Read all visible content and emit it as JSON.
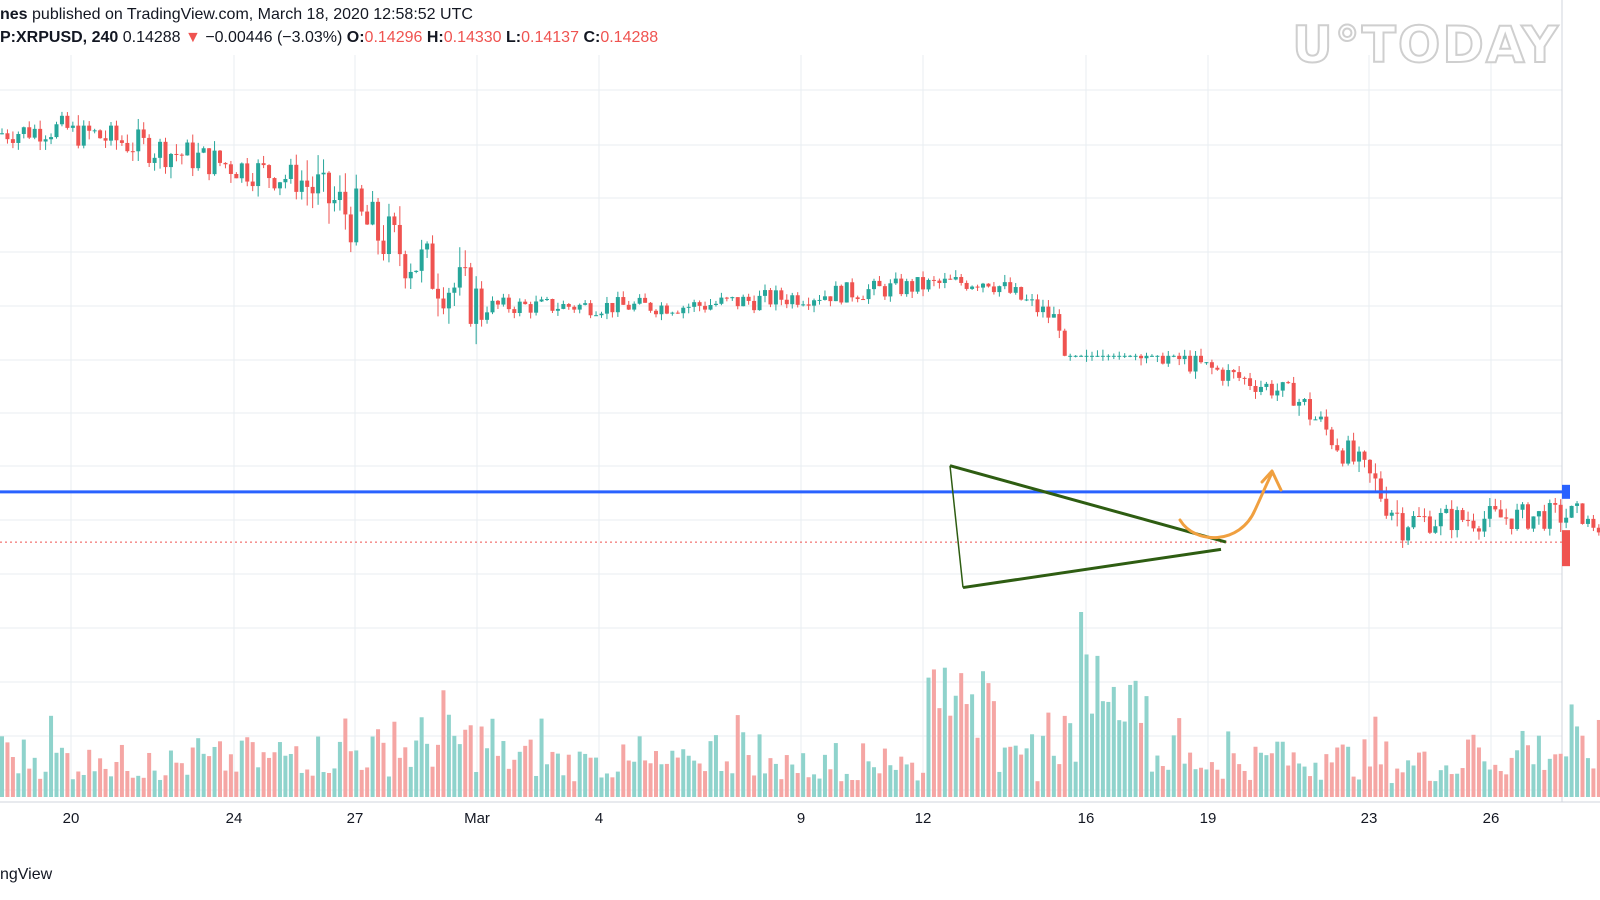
{
  "header": {
    "author": "nes",
    "published": "published on TradingView.com, March 18, 2020 12:58:52 UTC",
    "symbol": "P:XRPUSD, 240",
    "last": "0.14288",
    "change_arrow": "▼",
    "change": "−0.00446 (−3.03%)",
    "o_label": "O:",
    "o_value": "0.14296",
    "h_label": "H:",
    "h_value": "0.14330",
    "l_label": "L:",
    "l_value": "0.14137",
    "c_label": "C:",
    "c_value": "0.14288"
  },
  "watermark": "U°TODAY",
  "footer": "ngView",
  "colors": {
    "up": "#26a69a",
    "down": "#ef5350",
    "level": "#2962ff",
    "triangle": "#2e5d12",
    "arrow": "#f0a040",
    "grid": "#e8edf2"
  },
  "chart_data": {
    "type": "candlestick",
    "symbol": "XRPUSD",
    "interval": "240",
    "x_ticks": [
      "20",
      "24",
      "27",
      "Mar",
      "4",
      "9",
      "12",
      "16",
      "19",
      "23",
      "26"
    ],
    "ylim": [
      0.128,
      0.236
    ],
    "horizontal_level": 0.1525,
    "current_price": 0.14288,
    "segments": [
      {
        "bars": 12,
        "start": 0.221,
        "end": 0.222,
        "range": [
          0.2155,
          0.2295
        ]
      },
      {
        "bars": 44,
        "start": 0.222,
        "end": 0.212,
        "range": [
          0.2045,
          0.2225
        ]
      },
      {
        "bars": 33,
        "start": 0.212,
        "end": 0.188,
        "range": [
          0.18,
          0.2135
        ]
      },
      {
        "bars": 38,
        "start": 0.188,
        "end": 0.188,
        "range": [
          0.184,
          0.194
        ]
      },
      {
        "bars": 55,
        "start": 0.188,
        "end": 0.193,
        "range": [
          0.185,
          0.196
        ]
      },
      {
        "bars": 13,
        "start": 0.193,
        "end": 0.185,
        "range": [
          0.182,
          0.194
        ]
      },
      {
        "bars": 43,
        "start": 0.185,
        "end": 0.171,
        "range": [
          0.1665,
          0.1785
        ]
      },
      {
        "bars": 14,
        "start": 0.171,
        "end": 0.155,
        "range": [
          0.1535,
          0.1705
        ]
      },
      {
        "bars": 6,
        "start": 0.155,
        "end": 0.147,
        "range": [
          0.1355,
          0.1575
        ]
      },
      {
        "bars": 32,
        "start": 0.147,
        "end": 0.148,
        "range": [
          0.1395,
          0.1545
        ]
      },
      {
        "bars": 6,
        "start": 0.148,
        "end": 0.144,
        "range": [
          0.1415,
          0.1485
        ]
      },
      {
        "bars": 22,
        "start": 0.144,
        "end": 0.1429,
        "range": [
          0.1395,
          0.1465
        ]
      }
    ],
    "triangle": {
      "upper": [
        [
          0.1575,
          "Mar 12 20:00"
        ],
        [
          0.1429,
          "Mar 19 16:00"
        ]
      ],
      "lower": [
        [
          0.1342,
          "Mar 13 00:00"
        ],
        [
          0.1415,
          "Mar 19 12:00"
        ]
      ]
    },
    "volume": {
      "levels": [
        0.36,
        0.22,
        0.2,
        0.28,
        0.42,
        0.5,
        0.7,
        0.34,
        0.22,
        0.15,
        0.5,
        0.12,
        0.24,
        0.1,
        0.2,
        0.9,
        0.4,
        0.25,
        0.28,
        0.3,
        0.15,
        0.35,
        0.5,
        0.6,
        0.18
      ],
      "spikes": [
        0.9,
        1.0,
        0.8,
        0.95,
        0.4
      ]
    }
  }
}
